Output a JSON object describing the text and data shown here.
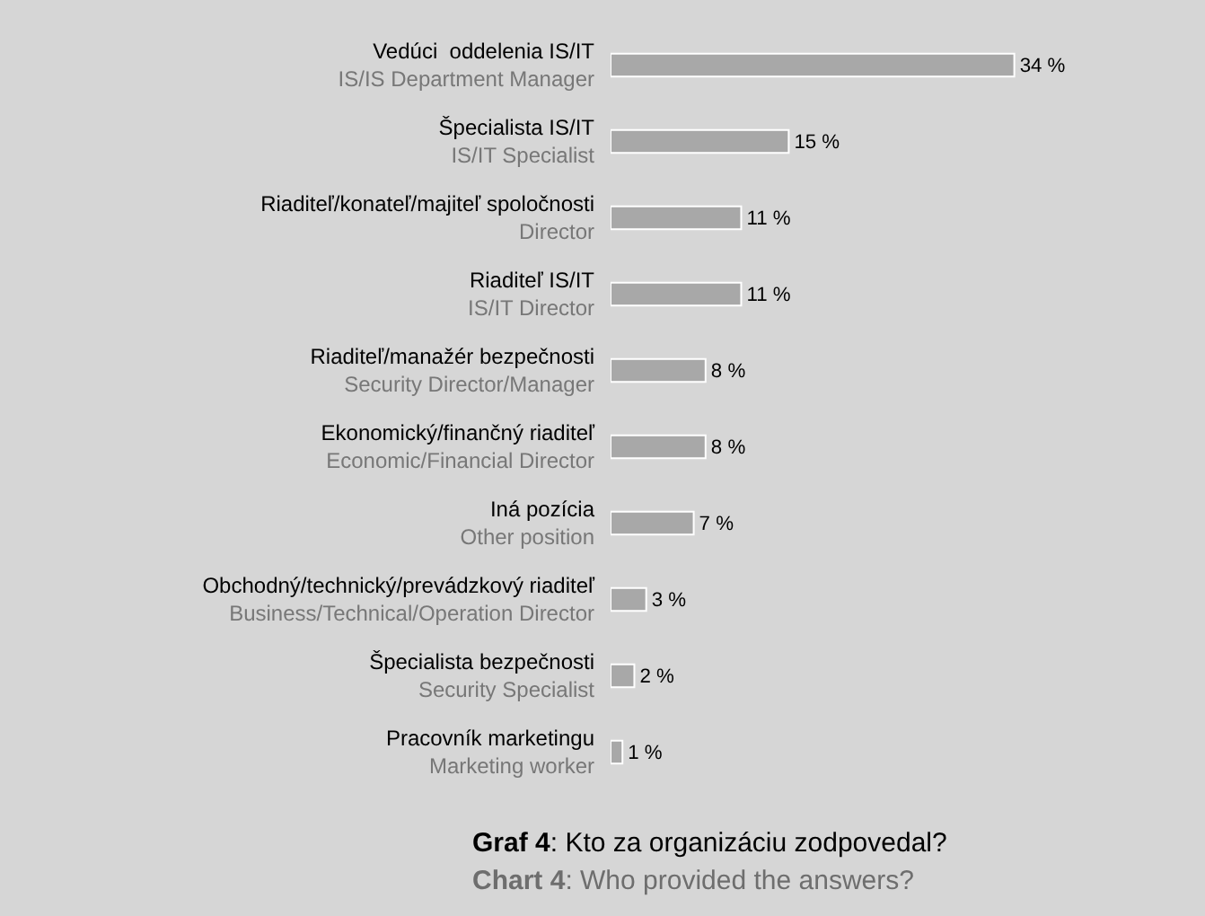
{
  "chart_data": {
    "type": "bar",
    "orientation": "horizontal",
    "title": "Graf 4: Kto za organizáciu zodpovedal?",
    "subtitle": "Chart 4: Who provided the answers?",
    "categories": [
      "Vedúci  oddelenia IS/IT\nIS/IS Department Manager",
      "Špecialista IS/IT\nIS/IT Specialist",
      "Riaditeľ/konateľ/majiteľ spoločnosti\nDirector",
      "Riaditeľ IS/IT\nIS/IT Director",
      "Riaditeľ/manažér bezpečnosti\nSecurity Director/Manager",
      "Ekonomický/finančný riaditeľ\nEconomic/Financial Director",
      "Iná pozícia\nOther position",
      "Obchodný/technický/prevádzkový riaditeľ\nBusiness/Technical/Operation Director",
      "Špecialista bezpečnosti\nSecurity Specialist",
      "Pracovník marketingu\nMarketing worker"
    ],
    "values": [
      34,
      15,
      11,
      11,
      8,
      8,
      7,
      3,
      2,
      1
    ],
    "value_labels": [
      "34 %",
      "15 %",
      "11 %",
      "11 %",
      "8 %",
      "8 %",
      "7 %",
      "3 %",
      "2 %",
      "1 %"
    ],
    "color": "#a8a8a8",
    "grid": false,
    "legend": false
  }
}
